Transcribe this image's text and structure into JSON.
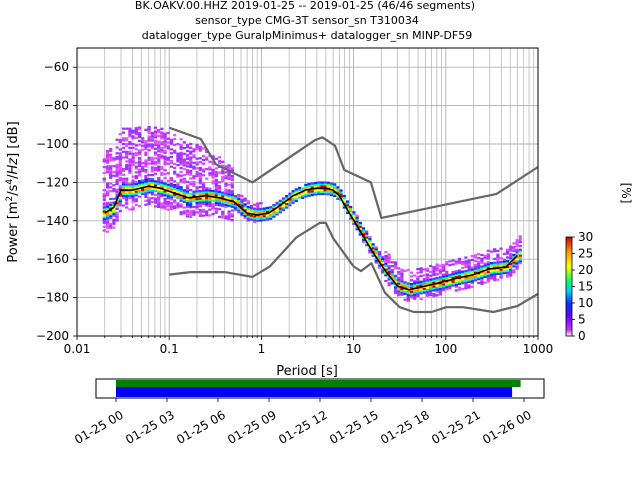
{
  "title_lines": [
    "BK.OAKV.00.HHZ   2019-01-25 -- 2019-01-25  (46/46 segments)",
    "sensor_type CMG-3T sensor_sn T310034",
    "datalogger_type GuralpMinimus+ datalogger_sn MINP-DF59"
  ],
  "colorbar": {
    "label": "[%]",
    "ticks": [
      "0",
      "5",
      "10",
      "15",
      "20",
      "25",
      "30"
    ],
    "range": [
      0,
      30
    ]
  },
  "colors": {
    "noise_model": "#666666",
    "mean_curve": "#000000",
    "coverage_top": "#008000",
    "coverage_bottom": "#0000ff"
  },
  "chart_data": [
    {
      "type": "line",
      "title": "BK.OAKV.00.HHZ   2019-01-25 -- 2019-01-25  (46/46 segments)",
      "xlabel": "Period [s]",
      "ylabel": "Power [m²/s⁴/Hz] [dB]",
      "xscale": "log",
      "xlim": [
        0.01,
        1000
      ],
      "ylim": [
        -200,
        -50
      ],
      "xticks": [
        "0.01",
        "0.1",
        "1",
        "10",
        "100",
        "1000"
      ],
      "yticks": [
        "−200",
        "−180",
        "−160",
        "−140",
        "−120",
        "−100",
        "−80",
        "−60"
      ],
      "grid": true,
      "series": [
        {
          "role": "new_high_noise_model",
          "x": [
            0.1,
            0.22,
            0.32,
            0.8,
            3.8,
            4.6,
            6.3,
            7.9,
            15.4,
            20,
            354.8,
            1000
          ],
          "values": [
            -91.5,
            -97.4,
            -110.5,
            -120,
            -98,
            -96.5,
            -101,
            -113.5,
            -120,
            -138.5,
            -126,
            -112
          ]
        },
        {
          "role": "new_low_noise_model",
          "x": [
            0.1,
            0.17,
            0.4,
            0.8,
            1.24,
            2.4,
            4.3,
            5,
            6,
            10,
            12,
            15.6,
            21.9,
            31.6,
            45,
            70,
            101,
            154,
            328,
            600,
            1000
          ],
          "values": [
            -168,
            -166.7,
            -166.7,
            -169.2,
            -163.7,
            -148.6,
            -141.1,
            -141.1,
            -149,
            -163.8,
            -166.2,
            -162.1,
            -177.5,
            -185,
            -187.5,
            -187.5,
            -185,
            -185,
            -187.5,
            -184.4,
            -178
          ]
        },
        {
          "role": "mean_psd",
          "x": [
            0.02,
            0.025,
            0.03,
            0.04,
            0.06,
            0.08,
            0.12,
            0.16,
            0.25,
            0.35,
            0.5,
            0.7,
            0.9,
            1.2,
            1.6,
            2.2,
            3,
            4,
            5,
            6,
            7,
            9,
            12,
            16,
            22,
            30,
            40,
            60,
            90,
            130,
            200,
            300,
            450,
            600
          ],
          "values": [
            -136,
            -133,
            -124,
            -124,
            -122,
            -123,
            -126,
            -128,
            -127,
            -128,
            -130,
            -136,
            -137,
            -136,
            -132,
            -127,
            -124,
            -123,
            -123,
            -124,
            -127,
            -136,
            -146,
            -156,
            -166,
            -174,
            -176,
            -174,
            -172,
            -170,
            -168,
            -165,
            -164,
            -158
          ]
        }
      ]
    },
    {
      "type": "bar",
      "xlabel": "",
      "ylabel": "",
      "xtick_labels": [
        "01-25 00",
        "01-25 03",
        "01-25 06",
        "01-25 09",
        "01-25 12",
        "01-25 15",
        "01-25 18",
        "01-25 21",
        "01-26 00"
      ],
      "series": [
        {
          "role": "processed_coverage",
          "start_hour": 0,
          "end_hour": 23.8
        },
        {
          "role": "data_coverage",
          "start_hour": 0,
          "end_hour": 23.3
        }
      ]
    }
  ]
}
